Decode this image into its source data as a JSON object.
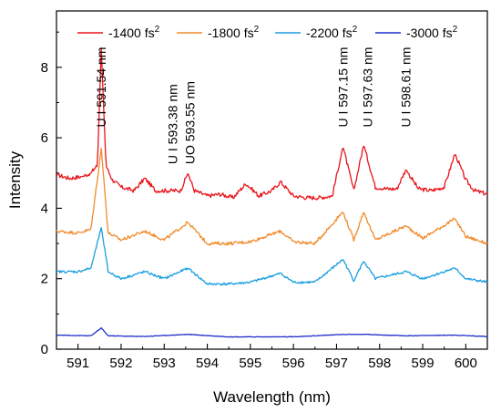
{
  "chart_data": {
    "type": "line",
    "xlabel": "Wavelength (nm)",
    "ylabel": "Intensity",
    "xlim": [
      590.5,
      600.5
    ],
    "ylim": [
      0,
      9.6
    ],
    "xticks": [
      591,
      592,
      593,
      594,
      595,
      596,
      597,
      598,
      599,
      600
    ],
    "yticks": [
      0,
      2,
      4,
      6,
      8
    ],
    "grid": false,
    "legend_position": "top",
    "series": [
      {
        "name": "-1400 fs",
        "name_sup": "2",
        "color": "#e8141b",
        "baseline": 4.55,
        "noise": 0.12,
        "x": [
          590.5,
          590.8,
          591.1,
          591.3,
          591.45,
          591.54,
          591.65,
          591.8,
          592.0,
          592.3,
          592.55,
          592.8,
          593.0,
          593.2,
          593.38,
          593.55,
          593.7,
          594.0,
          594.3,
          594.6,
          594.9,
          595.2,
          595.5,
          595.7,
          596.0,
          596.3,
          596.6,
          596.9,
          597.15,
          597.4,
          597.63,
          597.9,
          598.2,
          598.4,
          598.61,
          598.9,
          599.2,
          599.5,
          599.75,
          600.0,
          600.2,
          600.5
        ],
        "y": [
          4.95,
          4.85,
          4.9,
          5.0,
          5.2,
          8.55,
          5.2,
          4.8,
          4.6,
          4.5,
          4.85,
          4.5,
          4.5,
          4.5,
          4.5,
          5.0,
          4.5,
          4.35,
          4.4,
          4.3,
          4.7,
          4.35,
          4.5,
          4.75,
          4.35,
          4.3,
          4.3,
          4.35,
          5.75,
          4.5,
          5.8,
          4.6,
          4.55,
          4.55,
          5.1,
          4.55,
          4.5,
          4.6,
          5.55,
          4.8,
          4.5,
          4.4
        ]
      },
      {
        "name": "-1800 fs",
        "name_sup": "2",
        "color": "#f08a2a",
        "baseline": 3.15,
        "noise": 0.09,
        "x": [
          590.5,
          591.0,
          591.3,
          591.54,
          591.7,
          592.0,
          592.55,
          593.0,
          593.55,
          594.0,
          594.5,
          595.0,
          595.7,
          596.0,
          596.5,
          597.15,
          597.4,
          597.63,
          597.9,
          598.61,
          599.0,
          599.75,
          600.0,
          600.5
        ],
        "y": [
          3.35,
          3.3,
          3.4,
          5.7,
          3.3,
          3.1,
          3.35,
          3.1,
          3.6,
          3.0,
          3.0,
          3.05,
          3.35,
          3.05,
          3.0,
          3.9,
          3.1,
          3.9,
          3.1,
          3.5,
          3.15,
          3.7,
          3.2,
          3.0
        ]
      },
      {
        "name": "-2200 fs",
        "name_sup": "2",
        "color": "#1a9ee0",
        "baseline": 1.95,
        "noise": 0.07,
        "x": [
          590.5,
          591.0,
          591.3,
          591.54,
          591.7,
          592.0,
          592.55,
          593.0,
          593.55,
          594.0,
          594.5,
          595.0,
          595.7,
          596.0,
          596.5,
          597.15,
          597.4,
          597.63,
          597.9,
          598.61,
          599.0,
          599.75,
          600.0,
          600.5
        ],
        "y": [
          2.2,
          2.2,
          2.3,
          3.45,
          2.2,
          2.0,
          2.2,
          2.0,
          2.3,
          1.85,
          1.85,
          1.9,
          2.15,
          1.9,
          1.9,
          2.55,
          1.95,
          2.5,
          2.0,
          2.2,
          2.0,
          2.3,
          2.0,
          1.9
        ]
      },
      {
        "name": "-3000 fs",
        "name_sup": "2",
        "color": "#1c2fc8",
        "baseline": 0.38,
        "noise": 0.015,
        "x": [
          590.5,
          591.3,
          591.54,
          591.7,
          592.5,
          593.55,
          594.5,
          596.0,
          597.15,
          597.63,
          598.61,
          599.75,
          600.5
        ],
        "y": [
          0.4,
          0.38,
          0.6,
          0.38,
          0.36,
          0.42,
          0.35,
          0.35,
          0.42,
          0.42,
          0.38,
          0.4,
          0.36
        ]
      }
    ],
    "annotations": [
      {
        "text": "U I 591.54 nm",
        "x": 591.54,
        "y": 6.3,
        "color": "#000000"
      },
      {
        "text": "U I 593.38 nm",
        "x": 593.2,
        "y": 5.25,
        "color": "#000000"
      },
      {
        "text": "UO 593.55 nm",
        "x": 593.6,
        "y": 5.25,
        "color": "#8a2be2"
      },
      {
        "text": "U I 597.15 nm",
        "x": 597.15,
        "y": 6.3,
        "color": "#000000"
      },
      {
        "text": "U I 597.63 nm",
        "x": 597.72,
        "y": 6.3,
        "color": "#000000"
      },
      {
        "text": "U I 598.61 nm",
        "x": 598.61,
        "y": 6.3,
        "color": "#000000"
      }
    ]
  }
}
